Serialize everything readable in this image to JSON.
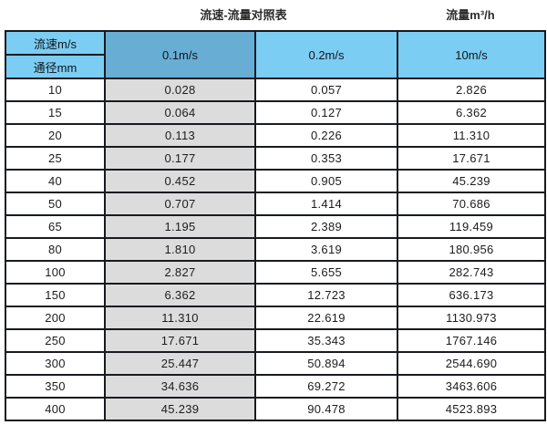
{
  "page": {
    "title_left": "流速-流量对照表",
    "title_right": "流量m³/h"
  },
  "colors": {
    "header_light_blue": "#7bcdf3",
    "header_dark_blue": "#68aed4",
    "highlight_gray": "#dcdcdc",
    "border_dark": "#171a1f"
  },
  "chart_data": {
    "type": "table",
    "title": "流速-流量对照表",
    "unit_label": "流量m³/h",
    "corner": {
      "top": "流速m/s",
      "bottom": "通径mm"
    },
    "velocity_columns": [
      "0.1m/s",
      "0.2m/s",
      "10m/s"
    ],
    "highlighted_column": "0.1m/s",
    "rows": [
      {
        "diameter": "10",
        "values": [
          "0.028",
          "0.057",
          "2.826"
        ]
      },
      {
        "diameter": "15",
        "values": [
          "0.064",
          "0.127",
          "6.362"
        ]
      },
      {
        "diameter": "20",
        "values": [
          "0.113",
          "0.226",
          "11.310"
        ]
      },
      {
        "diameter": "25",
        "values": [
          "0.177",
          "0.353",
          "17.671"
        ]
      },
      {
        "diameter": "40",
        "values": [
          "0.452",
          "0.905",
          "45.239"
        ]
      },
      {
        "diameter": "50",
        "values": [
          "0.707",
          "1.414",
          "70.686"
        ]
      },
      {
        "diameter": "65",
        "values": [
          "1.195",
          "2.389",
          "119.459"
        ]
      },
      {
        "diameter": "80",
        "values": [
          "1.810",
          "3.619",
          "180.956"
        ]
      },
      {
        "diameter": "100",
        "values": [
          "2.827",
          "5.655",
          "282.743"
        ]
      },
      {
        "diameter": "150",
        "values": [
          "6.362",
          "12.723",
          "636.173"
        ]
      },
      {
        "diameter": "200",
        "values": [
          "11.310",
          "22.619",
          "1130.973"
        ]
      },
      {
        "diameter": "250",
        "values": [
          "17.671",
          "35.343",
          "1767.146"
        ]
      },
      {
        "diameter": "300",
        "values": [
          "25.447",
          "50.894",
          "2544.690"
        ]
      },
      {
        "diameter": "350",
        "values": [
          "34.636",
          "69.272",
          "3463.606"
        ]
      },
      {
        "diameter": "400",
        "values": [
          "45.239",
          "90.478",
          "4523.893"
        ]
      }
    ]
  }
}
